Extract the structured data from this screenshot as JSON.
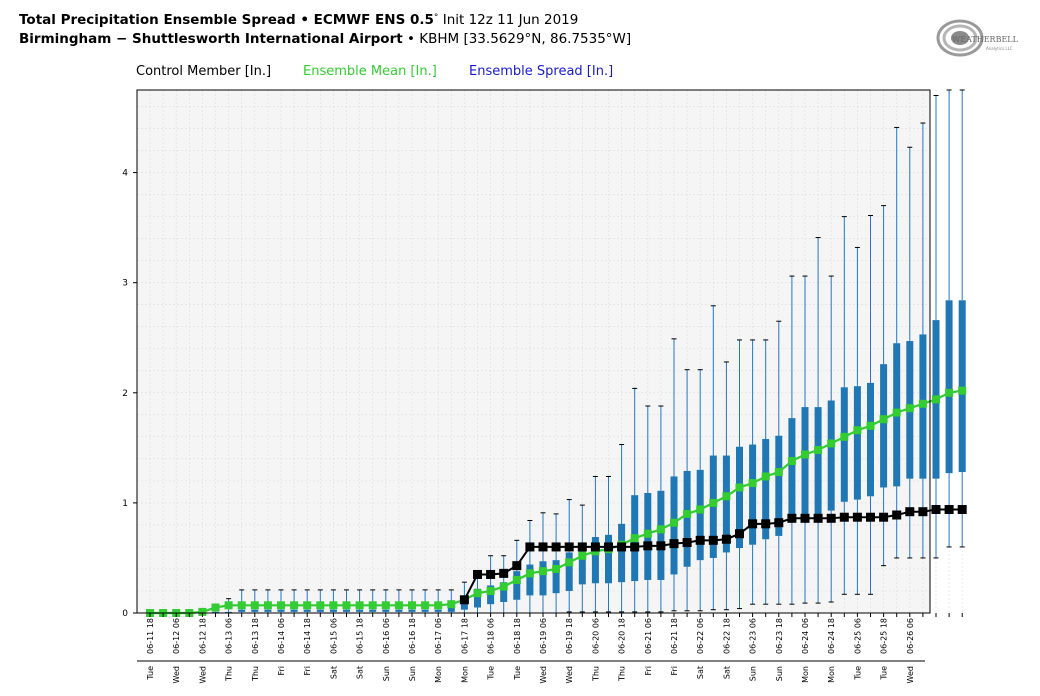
{
  "header": {
    "title_bold": "Total Precipitation Ensemble Spread • ECMWF ENS 0.5",
    "title_degree": "°",
    "title_init": " Init 12z 11 Jun 2019",
    "site_bold": "Birmingham − Shuttlesworth International Airport",
    "site_rest": " • KBHM [33.5629°N, 86.7535°W]"
  },
  "legend": {
    "control": "Control Member [In.]",
    "mean": "Ensemble Mean [In.]",
    "spread": "Ensemble Spread [In.]"
  },
  "logo": {
    "text": "WEATHERBELL",
    "sub": "Analytics LLC",
    "icon": "swirl-logo-icon"
  },
  "colors": {
    "control": "#000000",
    "mean": "#33cc33",
    "spread": "#2277cc",
    "box": "#1f77b4",
    "plot_bg": "#f5f5f5"
  },
  "chart_data": {
    "type": "box",
    "title": "",
    "xlabel": "",
    "ylabel": "",
    "ylim": [
      0,
      4.75
    ],
    "yticks": [
      0,
      1,
      2,
      3,
      4
    ],
    "grid": true,
    "legend_placement": "top-left",
    "time_labels": [
      "06-11 18",
      "06-12 06",
      "06-12 18",
      "06-13 06",
      "06-13 18",
      "06-14 06",
      "06-14 18",
      "06-15 06",
      "06-15 18",
      "06-16 06",
      "06-16 18",
      "06-17 06",
      "06-17 18",
      "06-18 06",
      "06-18 18",
      "06-19 06",
      "06-19 18",
      "06-20 06",
      "06-20 18",
      "06-21 06",
      "06-21 18",
      "06-22 06",
      "06-22 18",
      "06-23 06",
      "06-23 18",
      "06-24 06",
      "06-24 18",
      "06-25 06",
      "06-25 18",
      "06-26 06"
    ],
    "day_labels": [
      "Tue",
      "Wed",
      "Wed",
      "Thu",
      "Thu",
      "Fri",
      "Fri",
      "Sat",
      "Sat",
      "Sun",
      "Sun",
      "Mon",
      "Mon",
      "Tue",
      "Tue",
      "Wed",
      "Wed",
      "Thu",
      "Thu",
      "Fri",
      "Fri",
      "Sat",
      "Sat",
      "Sun",
      "Sun",
      "Mon",
      "Mon",
      "Tue",
      "Tue",
      "Wed"
    ],
    "boxes": [
      [
        0,
        0,
        0,
        0
      ],
      [
        0,
        0,
        0,
        0
      ],
      [
        0,
        0,
        0,
        0
      ],
      [
        0,
        0,
        0,
        0
      ],
      [
        0,
        0,
        0,
        0
      ],
      [
        0,
        0,
        0.01,
        0.03
      ],
      [
        0,
        0,
        0.01,
        0.13
      ],
      [
        0,
        0.01,
        0.03,
        0.21
      ],
      [
        0,
        0.01,
        0.03,
        0.21
      ],
      [
        0,
        0.01,
        0.03,
        0.21
      ],
      [
        0,
        0.01,
        0.03,
        0.21
      ],
      [
        0,
        0.01,
        0.03,
        0.21
      ],
      [
        0,
        0.01,
        0.03,
        0.21
      ],
      [
        0,
        0.01,
        0.03,
        0.21
      ],
      [
        0,
        0.01,
        0.03,
        0.21
      ],
      [
        0,
        0.01,
        0.03,
        0.21
      ],
      [
        0,
        0.01,
        0.03,
        0.21
      ],
      [
        0,
        0.01,
        0.03,
        0.21
      ],
      [
        0,
        0.01,
        0.03,
        0.21
      ],
      [
        0,
        0.01,
        0.03,
        0.21
      ],
      [
        0,
        0.01,
        0.03,
        0.21
      ],
      [
        0,
        0.01,
        0.03,
        0.21
      ],
      [
        0,
        0.01,
        0.03,
        0.21
      ],
      [
        0,
        0.01,
        0.05,
        0.21
      ],
      [
        0,
        0.03,
        0.11,
        0.28
      ],
      [
        0,
        0.05,
        0.22,
        0.33
      ],
      [
        0,
        0.08,
        0.25,
        0.52
      ],
      [
        0,
        0.1,
        0.28,
        0.52
      ],
      [
        0,
        0.12,
        0.38,
        0.66
      ],
      [
        0,
        0.16,
        0.44,
        0.84
      ],
      [
        0,
        0.16,
        0.47,
        0.91
      ],
      [
        0,
        0.18,
        0.48,
        0.9
      ],
      [
        0.01,
        0.2,
        0.55,
        1.03
      ],
      [
        0.01,
        0.26,
        0.62,
        0.98
      ],
      [
        0.01,
        0.27,
        0.69,
        1.24
      ],
      [
        0.01,
        0.27,
        0.71,
        1.24
      ],
      [
        0.01,
        0.28,
        0.81,
        1.53
      ],
      [
        0.01,
        0.29,
        1.07,
        2.04
      ],
      [
        0.01,
        0.3,
        1.09,
        1.88
      ],
      [
        0.01,
        0.3,
        1.11,
        1.88
      ],
      [
        0.02,
        0.35,
        1.24,
        2.49
      ],
      [
        0.02,
        0.42,
        1.29,
        2.21
      ],
      [
        0.02,
        0.48,
        1.3,
        2.21
      ],
      [
        0.03,
        0.5,
        1.43,
        2.79
      ],
      [
        0.03,
        0.55,
        1.43,
        2.28
      ],
      [
        0.04,
        0.59,
        1.51,
        2.48
      ],
      [
        0.08,
        0.62,
        1.53,
        2.48
      ],
      [
        0.08,
        0.67,
        1.58,
        2.48
      ],
      [
        0.08,
        0.7,
        1.61,
        2.65
      ],
      [
        0.08,
        0.83,
        1.77,
        3.06
      ],
      [
        0.09,
        0.86,
        1.87,
        3.06
      ],
      [
        0.09,
        0.87,
        1.87,
        3.41
      ],
      [
        0.1,
        0.93,
        1.93,
        3.06
      ],
      [
        0.17,
        1.01,
        2.05,
        3.6
      ],
      [
        0.17,
        1.03,
        2.06,
        3.32
      ],
      [
        0.17,
        1.06,
        2.09,
        3.61
      ],
      [
        0.43,
        1.14,
        2.26,
        3.7
      ],
      [
        0.5,
        1.15,
        2.45,
        4.41
      ],
      [
        0.5,
        1.22,
        2.47,
        4.23
      ],
      [
        0.5,
        1.22,
        2.53,
        4.45
      ],
      [
        0.5,
        1.22,
        2.66,
        4.7
      ],
      [
        0.6,
        1.27,
        2.84,
        4.75
      ],
      [
        0.6,
        1.28,
        2.84,
        4.75
      ]
    ],
    "mean": [
      0,
      0,
      0,
      0,
      0.01,
      0.05,
      0.07,
      0.07,
      0.07,
      0.07,
      0.07,
      0.07,
      0.07,
      0.07,
      0.07,
      0.07,
      0.07,
      0.07,
      0.07,
      0.07,
      0.07,
      0.07,
      0.07,
      0.08,
      0.12,
      0.18,
      0.2,
      0.24,
      0.3,
      0.36,
      0.38,
      0.4,
      0.46,
      0.52,
      0.56,
      0.58,
      0.62,
      0.68,
      0.72,
      0.76,
      0.82,
      0.9,
      0.94,
      1.0,
      1.06,
      1.14,
      1.18,
      1.24,
      1.28,
      1.38,
      1.44,
      1.48,
      1.54,
      1.6,
      1.66,
      1.7,
      1.76,
      1.82,
      1.86,
      1.9,
      1.94,
      2.0,
      2.02
    ],
    "control": [
      null,
      null,
      null,
      null,
      null,
      null,
      null,
      null,
      null,
      null,
      null,
      null,
      null,
      null,
      null,
      null,
      null,
      null,
      null,
      null,
      null,
      null,
      null,
      null,
      0.12,
      0.35,
      0.35,
      0.36,
      0.43,
      0.6,
      0.6,
      0.6,
      0.6,
      0.6,
      0.6,
      0.6,
      0.6,
      0.6,
      0.61,
      0.61,
      0.63,
      0.64,
      0.66,
      0.66,
      0.67,
      0.72,
      0.81,
      0.81,
      0.82,
      0.86,
      0.86,
      0.86,
      0.86,
      0.87,
      0.87,
      0.87,
      0.87,
      0.89,
      0.92,
      0.92,
      0.94,
      0.94,
      0.94
    ]
  }
}
